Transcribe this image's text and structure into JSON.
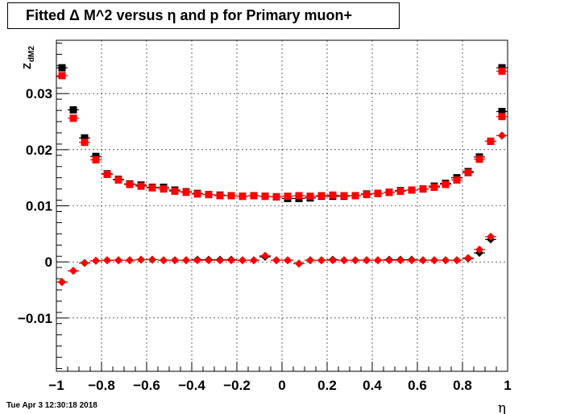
{
  "chart_data": {
    "type": "scatter",
    "title": "Fitted Δ M^2 versus η and p for Primary muon+",
    "xlabel": "η",
    "ylabel": "Z",
    "ylabel_sub": "dM2",
    "xlim": [
      -1,
      1
    ],
    "ylim": [
      -0.0195,
      0.0395
    ],
    "grid": true,
    "x_ticks": [
      {
        "v": -1,
        "label": "−1"
      },
      {
        "v": -0.8,
        "label": "−0.8"
      },
      {
        "v": -0.6,
        "label": "−0.6"
      },
      {
        "v": -0.4,
        "label": "−0.4"
      },
      {
        "v": -0.2,
        "label": "−0.2"
      },
      {
        "v": 0,
        "label": "0"
      },
      {
        "v": 0.2,
        "label": "0.2"
      },
      {
        "v": 0.4,
        "label": "0.4"
      },
      {
        "v": 0.6,
        "label": "0.6"
      },
      {
        "v": 0.8,
        "label": "0.8"
      },
      {
        "v": 1,
        "label": "1"
      }
    ],
    "y_ticks": [
      {
        "v": -0.01,
        "label": "−0.01"
      },
      {
        "v": 0,
        "label": "0"
      },
      {
        "v": 0.01,
        "label": "0.01"
      },
      {
        "v": 0.02,
        "label": "0.02"
      },
      {
        "v": 0.03,
        "label": "0.03"
      }
    ],
    "x": [
      -0.975,
      -0.925,
      -0.875,
      -0.825,
      -0.775,
      -0.725,
      -0.675,
      -0.625,
      -0.575,
      -0.525,
      -0.475,
      -0.425,
      -0.375,
      -0.325,
      -0.275,
      -0.225,
      -0.175,
      -0.125,
      -0.075,
      -0.025,
      0.025,
      0.075,
      0.125,
      0.175,
      0.225,
      0.275,
      0.325,
      0.375,
      0.425,
      0.475,
      0.525,
      0.575,
      0.625,
      0.675,
      0.725,
      0.775,
      0.825,
      0.875,
      0.925,
      0.975
    ],
    "series": [
      {
        "marker": "square",
        "color": "#000000",
        "values": [
          0.0346,
          0.0271,
          0.0221,
          0.0188,
          0.0157,
          0.0147,
          0.0139,
          0.0137,
          0.0133,
          0.0133,
          0.0128,
          0.0125,
          0.0122,
          0.012,
          0.0119,
          0.0118,
          0.0117,
          0.0118,
          0.0117,
          0.0116,
          0.0113,
          0.0113,
          0.0114,
          0.0117,
          0.0117,
          0.0117,
          0.0118,
          0.0121,
          0.0122,
          0.0124,
          0.0127,
          0.0128,
          0.013,
          0.0135,
          0.014,
          0.015,
          0.0161,
          0.0187,
          0.0215,
          0.0268
        ]
      },
      {
        "marker": "square",
        "color": "#ff0000",
        "values": [
          0.0332,
          0.0256,
          0.0213,
          0.0182,
          0.0156,
          0.0146,
          0.0138,
          0.0135,
          0.0132,
          0.013,
          0.0126,
          0.0124,
          0.0121,
          0.012,
          0.0118,
          0.0118,
          0.0117,
          0.0118,
          0.0117,
          0.0116,
          0.0117,
          0.0118,
          0.0117,
          0.0118,
          0.0119,
          0.0118,
          0.0118,
          0.012,
          0.0122,
          0.0124,
          0.0126,
          0.0128,
          0.013,
          0.0133,
          0.0138,
          0.0146,
          0.0159,
          0.0183,
          0.0215,
          0.0259
        ]
      },
      {
        "marker": "square",
        "color": "#000000",
        "anchor_last": true,
        "values": [
          0.0346
        ]
      },
      {
        "marker": "square",
        "color": "#ff0000",
        "anchor_last": true,
        "values": [
          0.034
        ]
      },
      {
        "marker": "diamond",
        "color": "#000000",
        "values": [
          -0.0036,
          -0.0016,
          -0.0002,
          0.0002,
          0.0003,
          0.0003,
          0.0003,
          0.0004,
          0.0004,
          0.0003,
          0.0003,
          0.0003,
          0.0004,
          0.0004,
          0.0004,
          0.0004,
          0.0003,
          0.0003,
          0.0009,
          0.0003,
          0.0003,
          -0.0003,
          0.0003,
          0.0003,
          0.0004,
          0.0003,
          0.0003,
          0.0003,
          0.0003,
          0.0004,
          0.0004,
          0.0004,
          0.0003,
          0.0003,
          0.0003,
          0.0003,
          0.0006,
          0.0016,
          0.004,
          0.0225
        ]
      },
      {
        "marker": "diamond",
        "color": "#ff0000",
        "values": [
          -0.0036,
          -0.0016,
          -0.0002,
          0.0002,
          0.0003,
          0.0003,
          0.0003,
          0.0004,
          0.0004,
          0.0003,
          0.0003,
          0.0003,
          0.0003,
          0.0003,
          0.0003,
          0.0003,
          0.0003,
          0.0003,
          0.0011,
          0.0003,
          0.0003,
          -0.0003,
          0.0003,
          0.0003,
          0.0003,
          0.0003,
          0.0003,
          0.0003,
          0.0003,
          0.0003,
          0.0003,
          0.0003,
          0.0003,
          0.0003,
          0.0003,
          0.0003,
          0.0007,
          0.0022,
          0.0045,
          0.0225
        ]
      }
    ]
  },
  "footer": "Tue Apr  3 12:30:18 2018"
}
